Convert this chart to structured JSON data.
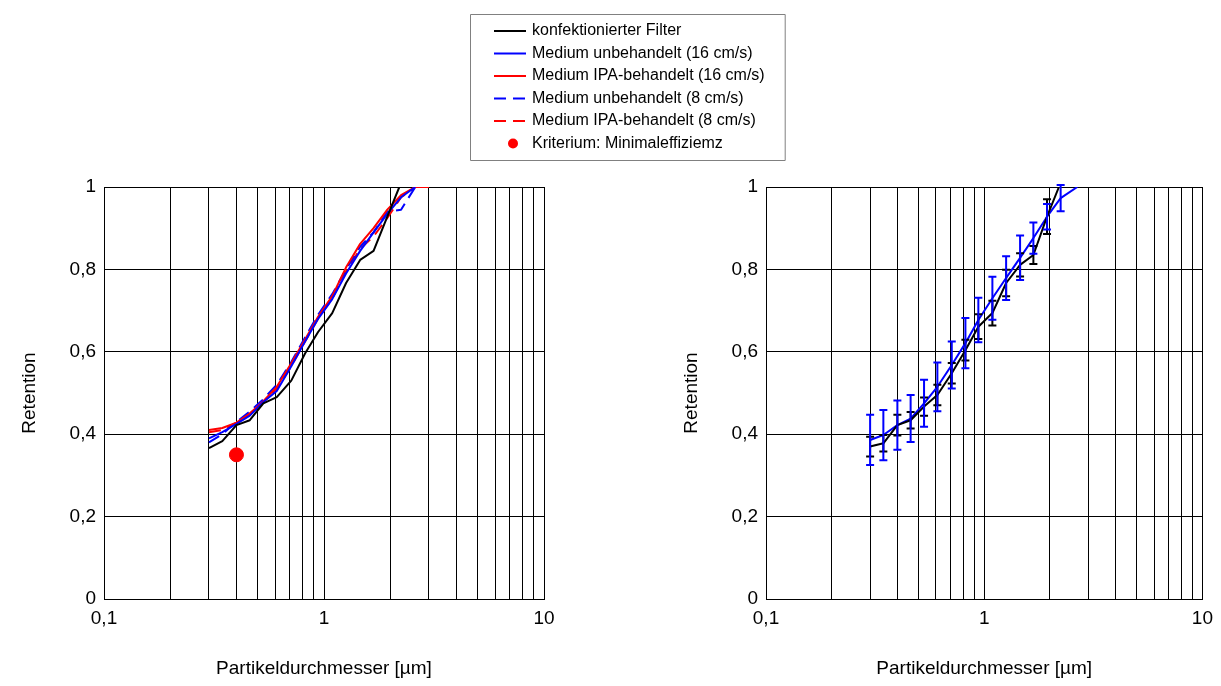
{
  "chart_data": [
    {
      "type": "line",
      "xlabel": "Partikeldurchmesser [µm]",
      "ylabel": "Retention",
      "log": "x",
      "grid": true,
      "legend": "top",
      "line_style": "solid",
      "xlim": [
        0.1,
        10
      ],
      "xticks": [
        {
          "value": 0.1,
          "label": "0,1"
        },
        {
          "value": 0.2,
          "label": null
        },
        {
          "value": 0.3,
          "label": null
        },
        {
          "value": 0.4,
          "label": null
        },
        {
          "value": 0.5,
          "label": null
        },
        {
          "value": 0.6,
          "label": null
        },
        {
          "value": 0.7,
          "label": null
        },
        {
          "value": 0.8,
          "label": null
        },
        {
          "value": 0.9,
          "label": null
        },
        {
          "value": 1,
          "label": "1"
        },
        {
          "value": 2,
          "label": null
        },
        {
          "value": 3,
          "label": null
        },
        {
          "value": 4,
          "label": null
        },
        {
          "value": 5,
          "label": null
        },
        {
          "value": 6,
          "label": null
        },
        {
          "value": 7,
          "label": null
        },
        {
          "value": 8,
          "label": null
        },
        {
          "value": 9,
          "label": null
        },
        {
          "value": 10,
          "label": "10"
        }
      ],
      "ylim": [
        0,
        1
      ],
      "yticks": [
        {
          "value": 0,
          "label": "0"
        },
        {
          "value": 0.2,
          "label": "0,2"
        },
        {
          "value": 0.4,
          "label": "0,4"
        },
        {
          "value": 0.6,
          "label": "0,6"
        },
        {
          "value": 0.8,
          "label": "0,8"
        },
        {
          "value": 1,
          "label": "1"
        }
      ],
      "series": [
        {
          "name": "konfektionierter Filter",
          "color": "#000000",
          "x": [
            0.3,
            0.345,
            0.4,
            0.46,
            0.53,
            0.61,
            0.71,
            0.82,
            0.94,
            1.09,
            1.26,
            1.46,
            1.68,
            1.94,
            2.2
          ],
          "values": [
            0.366,
            0.383,
            0.422,
            0.434,
            0.475,
            0.49,
            0.53,
            0.596,
            0.648,
            0.694,
            0.767,
            0.823,
            0.845,
            0.928,
            1.0
          ]
        },
        {
          "name": "Medium unbehandelt (16 cm/s)",
          "color": "#0000ff",
          "x": [
            0.3,
            0.345,
            0.4,
            0.46,
            0.53,
            0.61,
            0.71,
            0.82,
            0.94,
            1.09,
            1.26,
            1.46,
            1.68,
            1.94,
            2.24,
            2.6
          ],
          "values": [
            0.39,
            0.405,
            0.425,
            0.445,
            0.478,
            0.505,
            0.565,
            0.625,
            0.68,
            0.728,
            0.79,
            0.845,
            0.89,
            0.935,
            0.975,
            1.0
          ]
        },
        {
          "name": "Medium IPA-behandelt (16 cm/s)",
          "color": "#ff0000",
          "x": [
            0.3,
            0.345,
            0.4,
            0.46,
            0.53,
            0.61,
            0.71,
            0.82,
            0.94,
            1.09,
            1.26,
            1.46,
            1.68,
            1.94,
            2.24,
            2.6,
            3.0
          ],
          "values": [
            0.41,
            0.415,
            0.428,
            0.45,
            0.48,
            0.515,
            0.572,
            0.63,
            0.685,
            0.735,
            0.805,
            0.862,
            0.9,
            0.945,
            0.98,
            1.0,
            1.0
          ]
        },
        {
          "name": "Medium unbehandelt (8 cm/s)",
          "color": "#0000ff",
          "line_style": "dashed",
          "x": [
            0.3,
            0.345,
            0.4,
            0.46,
            0.53,
            0.61,
            0.71,
            0.82,
            0.94,
            1.09,
            1.26,
            1.46,
            1.68,
            1.94,
            2.24,
            2.6
          ],
          "values": [
            0.38,
            0.4,
            0.43,
            0.455,
            0.485,
            0.52,
            0.575,
            0.635,
            0.69,
            0.74,
            0.8,
            0.855,
            0.89,
            0.94,
            0.945,
            1.0
          ]
        },
        {
          "name": "Medium IPA-behandelt (8 cm/s)",
          "color": "#ff0000",
          "line_style": "dashed",
          "x": [
            0.3,
            0.345,
            0.4,
            0.46,
            0.53,
            0.61,
            0.71,
            0.82,
            0.94,
            1.09,
            1.26,
            1.46,
            1.68,
            1.94,
            2.24,
            2.6
          ],
          "values": [
            0.405,
            0.41,
            0.428,
            0.45,
            0.478,
            0.51,
            0.565,
            0.625,
            0.68,
            0.73,
            0.795,
            0.85,
            0.88,
            0.925,
            0.975,
            1.0
          ]
        },
        {
          "name": "Kriterium: Minimaleffiziemz",
          "type": "scatter",
          "marker": "circle",
          "color": "#ff0000",
          "x": [
            0.4
          ],
          "values": [
            0.35
          ]
        }
      ]
    },
    {
      "type": "line",
      "xlabel": "Partikeldurchmesser [µm]",
      "ylabel": "Retention",
      "log": "x",
      "grid": true,
      "line_style": "solid",
      "xlim": [
        0.1,
        10
      ],
      "xticks": [
        {
          "value": 0.1,
          "label": "0,1"
        },
        {
          "value": 0.2,
          "label": null
        },
        {
          "value": 0.3,
          "label": null
        },
        {
          "value": 0.4,
          "label": null
        },
        {
          "value": 0.5,
          "label": null
        },
        {
          "value": 0.6,
          "label": null
        },
        {
          "value": 0.7,
          "label": null
        },
        {
          "value": 0.8,
          "label": null
        },
        {
          "value": 0.9,
          "label": null
        },
        {
          "value": 1,
          "label": "1"
        },
        {
          "value": 2,
          "label": null
        },
        {
          "value": 3,
          "label": null
        },
        {
          "value": 4,
          "label": null
        },
        {
          "value": 5,
          "label": null
        },
        {
          "value": 6,
          "label": null
        },
        {
          "value": 7,
          "label": null
        },
        {
          "value": 8,
          "label": null
        },
        {
          "value": 9,
          "label": null
        },
        {
          "value": 10,
          "label": "10"
        }
      ],
      "ylim": [
        0,
        1
      ],
      "yticks": [
        {
          "value": 0,
          "label": "0"
        },
        {
          "value": 0.2,
          "label": "0,2"
        },
        {
          "value": 0.4,
          "label": "0,4"
        },
        {
          "value": 0.6,
          "label": "0,6"
        },
        {
          "value": 0.8,
          "label": "0,8"
        },
        {
          "value": 1,
          "label": "1"
        }
      ],
      "series": [
        {
          "color": "#000000",
          "x": [
            0.3,
            0.345,
            0.4,
            0.46,
            0.53,
            0.61,
            0.71,
            0.82,
            0.94,
            1.09,
            1.26,
            1.46,
            1.68,
            1.94,
            2.2
          ],
          "values": [
            0.37,
            0.378,
            0.422,
            0.434,
            0.467,
            0.495,
            0.548,
            0.604,
            0.661,
            0.694,
            0.767,
            0.811,
            0.835,
            0.928,
            1.0
          ],
          "errors": [
            0.024,
            0.02,
            0.025,
            0.02,
            0.022,
            0.025,
            0.025,
            0.025,
            0.03,
            0.03,
            0.032,
            0.028,
            0.022,
            0.042,
            null
          ]
        },
        {
          "color": "#0000ff",
          "x": [
            0.3,
            0.345,
            0.4,
            0.46,
            0.53,
            0.61,
            0.71,
            0.82,
            0.94,
            1.09,
            1.26,
            1.46,
            1.68,
            1.94,
            2.24,
            2.67
          ],
          "values": [
            0.386,
            0.398,
            0.422,
            0.438,
            0.475,
            0.515,
            0.568,
            0.621,
            0.677,
            0.73,
            0.779,
            0.828,
            0.876,
            0.928,
            0.973,
            1.0
          ],
          "errors": [
            0.061,
            0.061,
            0.06,
            0.057,
            0.057,
            0.059,
            0.057,
            0.061,
            0.054,
            0.052,
            0.053,
            0.054,
            0.038,
            0.031,
            0.032,
            null
          ]
        }
      ]
    }
  ]
}
